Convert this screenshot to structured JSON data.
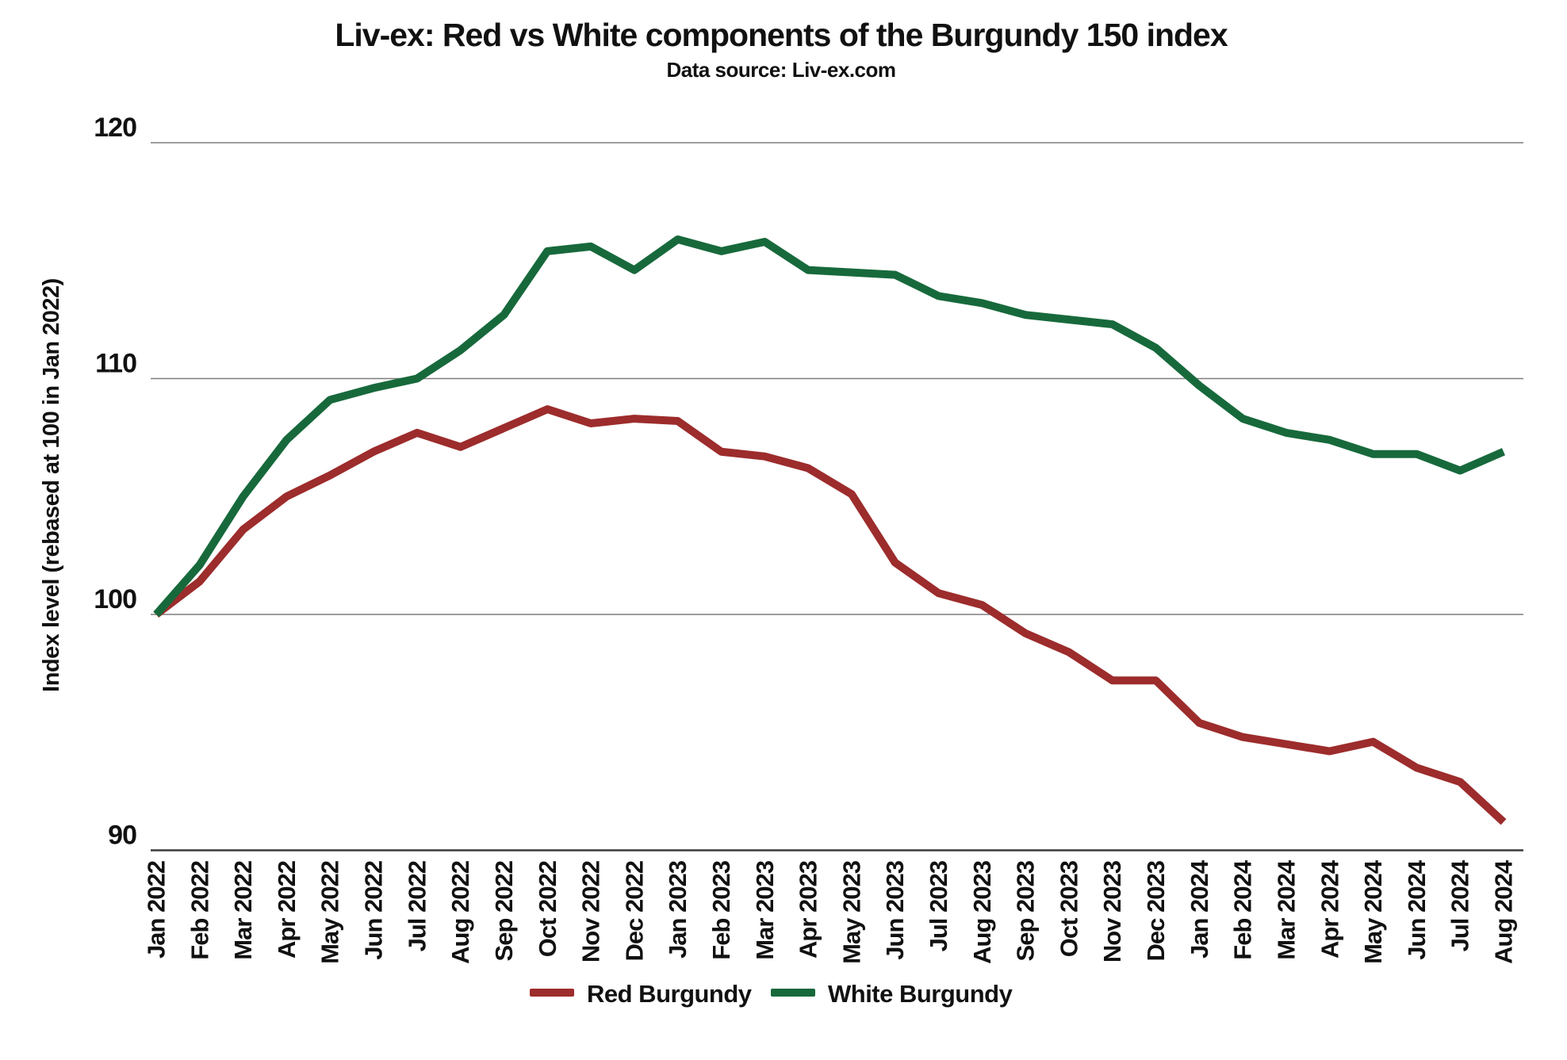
{
  "header": {
    "title": "Liv-ex: Red vs White components of the Burgundy 150 index",
    "subtitle": "Data source: Liv-ex.com"
  },
  "colors": {
    "red_series": "#9D2C2C",
    "green_series": "#17693B",
    "gridline": "#7d7d7d",
    "axis_line": "#3a3a3a",
    "text": "#111111"
  },
  "chart_data": {
    "type": "line",
    "title": "Liv-ex: Red vs White components of the Burgundy 150 index",
    "subtitle": "Data source: Liv-ex.com",
    "xlabel": "",
    "ylabel": "Index level (rebased at 100 in Jan 2022)",
    "ylim": [
      90,
      121
    ],
    "yticks": [
      120,
      110,
      100,
      90
    ],
    "grid": true,
    "legend_position": "bottom",
    "categories": [
      "Jan 2022",
      "Feb 2022",
      "Mar 2022",
      "Apr 2022",
      "May 2022",
      "Jun 2022",
      "Jul 2022",
      "Aug 2022",
      "Sep 2022",
      "Oct 2022",
      "Nov 2022",
      "Dec 2022",
      "Jan 2023",
      "Feb 2023",
      "Mar 2023",
      "Apr 2023",
      "May 2023",
      "Jun 2023",
      "Jul 2023",
      "Aug 2023",
      "Sep 2023",
      "Oct 2023",
      "Nov 2023",
      "Dec 2023",
      "Jan 2024",
      "Feb 2024",
      "Mar 2024",
      "Apr 2024",
      "May 2024",
      "Jun 2024",
      "Jul 2024",
      "Aug 2024"
    ],
    "series": [
      {
        "name": "Red Burgundy",
        "color": "#9D2C2C",
        "values": [
          100,
          101.4,
          103.6,
          105.0,
          105.9,
          106.9,
          107.7,
          107.1,
          107.9,
          108.7,
          108.1,
          108.3,
          108.2,
          106.9,
          106.7,
          106.2,
          105.1,
          102.2,
          100.9,
          100.4,
          99.2,
          98.4,
          97.2,
          97.2,
          95.4,
          94.8,
          94.5,
          94.2,
          94.6,
          93.5,
          92.9,
          91.2
        ]
      },
      {
        "name": "White Burgundy",
        "color": "#17693B",
        "values": [
          100,
          102.1,
          105.0,
          107.4,
          109.1,
          109.6,
          110.0,
          111.2,
          112.7,
          115.4,
          115.6,
          114.6,
          115.9,
          115.4,
          115.8,
          114.6,
          114.5,
          114.4,
          113.5,
          113.2,
          112.7,
          112.5,
          112.3,
          111.3,
          109.7,
          108.3,
          107.7,
          107.4,
          106.8,
          106.8,
          106.1,
          106.9
        ]
      }
    ]
  }
}
